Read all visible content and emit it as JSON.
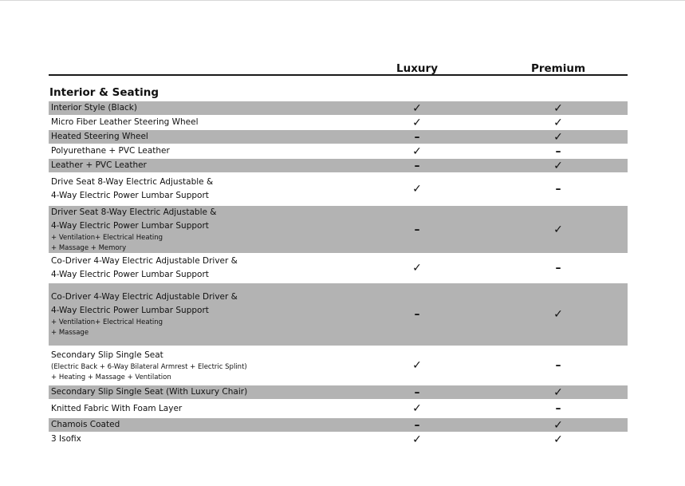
{
  "columns": [
    "Luxury",
    "Premium"
  ],
  "section": "Interior & Seating",
  "rows": [
    {
      "lines": [
        "Interior Style (Black)"
      ],
      "small": [],
      "luxury": "✓",
      "premium": "✓",
      "shaded": true,
      "h": 17
    },
    {
      "lines": [
        "Micro Fiber Leather Steering Wheel"
      ],
      "small": [],
      "luxury": "✓",
      "premium": "✓",
      "shaded": false,
      "h": 17
    },
    {
      "lines": [
        "Heated Steering Wheel"
      ],
      "small": [],
      "luxury": "–",
      "premium": "✓",
      "shaded": true,
      "h": 17
    },
    {
      "lines": [
        "Polyurethane + PVC Leather"
      ],
      "small": [],
      "luxury": "✓",
      "premium": "–",
      "shaded": false,
      "h": 17
    },
    {
      "lines": [
        "Leather + PVC Leather"
      ],
      "small": [],
      "luxury": "–",
      "premium": "✓",
      "shaded": true,
      "h": 17
    },
    {
      "lines": [
        "Drive Seat 8-Way Electric Adjustable &",
        "4-Way Electric Power Lumbar Support"
      ],
      "small": [],
      "luxury": "✓",
      "premium": "–",
      "shaded": false,
      "h": 40
    },
    {
      "lines": [
        "Driver Seat 8-Way Electric Adjustable &",
        "4-Way Electric Power Lumbar Support"
      ],
      "small": [
        "+ Ventilation+ Electrical Heating",
        "+ Massage + Memory"
      ],
      "luxury": "–",
      "premium": "✓",
      "shaded": true,
      "h": 59
    },
    {
      "lines": [
        "Co-Driver 4-Way Electric Adjustable Driver &",
        "4-Way Electric Power Lumbar Support"
      ],
      "small": [],
      "luxury": "✓",
      "premium": "–",
      "shaded": false,
      "h": 36
    },
    {
      "lines": [
        "Co-Driver 4-Way Electric Adjustable Driver &",
        "4-Way Electric Power Lumbar Support"
      ],
      "small": [
        "+ Ventilation+ Electrical Heating",
        "+ Massage"
      ],
      "luxury": "–",
      "premium": "✓",
      "shaded": true,
      "h": 78
    },
    {
      "lines": [
        "Secondary Slip Single Seat"
      ],
      "small": [
        "(Electric Back + 6-Way Bilateral Armrest + Electric Splint)",
        "+ Heating + Massage + Ventilation"
      ],
      "luxury": "✓",
      "premium": "–",
      "shaded": false,
      "h": 48
    },
    {
      "lines": [
        "Secondary Slip Single Seat (With Luxury Chair)"
      ],
      "small": [],
      "luxury": "–",
      "premium": "✓",
      "shaded": true,
      "h": 17
    },
    {
      "lines": [
        "Knitted Fabric With Foam Layer"
      ],
      "small": [],
      "luxury": "✓",
      "premium": "–",
      "shaded": false,
      "h": 22
    },
    {
      "lines": [
        "Chamois Coated"
      ],
      "small": [],
      "luxury": "–",
      "premium": "✓",
      "shaded": true,
      "h": 17
    },
    {
      "lines": [
        "3 Isofix"
      ],
      "small": [],
      "luxury": "✓",
      "premium": "✓",
      "shaded": false,
      "h": 17
    }
  ]
}
